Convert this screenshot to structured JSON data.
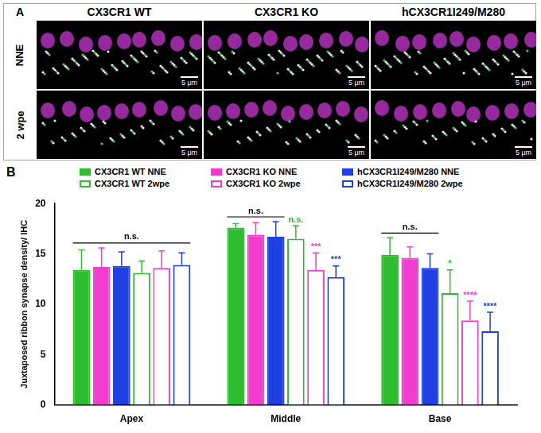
{
  "panel_a": {
    "letter": "A",
    "columns": [
      "CX3CR1 WT",
      "CX3CR1 KO",
      "hCX3CR1I249/M280"
    ],
    "rows": [
      "NNE",
      "2 wpe"
    ],
    "scale_bar": "5 μm"
  },
  "panel_b": {
    "letter": "B"
  },
  "chart_data": {
    "type": "bar",
    "categories": [
      "Apex",
      "Middle",
      "Base"
    ],
    "y_label": "Juxtaposed ribbon synapse density/ IHC",
    "ylim": [
      0,
      20
    ],
    "yticks": [
      0,
      5,
      10,
      15,
      20
    ],
    "grid": false,
    "legend": "top",
    "series": [
      {
        "name": "CX3CR1 WT NNE",
        "color": "#2ebd2e",
        "marker": "filled",
        "values": [
          13.4,
          17.6,
          14.9
        ],
        "errors": [
          2.0,
          0.4,
          1.7
        ]
      },
      {
        "name": "CX3CR1 KO NNE",
        "color": "#f23ccf",
        "marker": "filled",
        "values": [
          13.7,
          16.9,
          14.6
        ],
        "errors": [
          1.9,
          1.2,
          1.1
        ]
      },
      {
        "name": "hCX3CR1I249/M280 NNE",
        "color": "#1f3fe0",
        "marker": "filled",
        "values": [
          13.8,
          16.7,
          13.6
        ],
        "errors": [
          1.4,
          1.5,
          1.4
        ]
      },
      {
        "name": "CX3CR1 WT 2wpe",
        "color": "#2ebd2e",
        "marker": "open",
        "values": [
          13.1,
          16.5,
          11.1
        ],
        "errors": [
          1.2,
          1.3,
          2.3
        ]
      },
      {
        "name": "CX3CR1 KO 2wpe",
        "color": "#f23ccf",
        "marker": "open",
        "values": [
          13.6,
          13.4,
          8.4
        ],
        "errors": [
          1.7,
          1.7,
          1.9
        ]
      },
      {
        "name": "hCX3CR1I249/M280 2wpe",
        "color": "#1f3fe0",
        "marker": "open",
        "values": [
          13.9,
          12.7,
          7.3
        ],
        "errors": [
          1.2,
          1.1,
          1.9
        ]
      }
    ],
    "annotations": [
      {
        "text": "n.s.",
        "category": "Apex",
        "series": [
          "CX3CR1 WT NNE",
          "CX3CR1 KO NNE",
          "hCX3CR1I249/M280 NNE",
          "CX3CR1 WT 2wpe",
          "CX3CR1 KO 2wpe",
          "hCX3CR1I249/M280 2wpe"
        ]
      },
      {
        "text": "n.s.",
        "category": "Middle",
        "series": [
          "CX3CR1 WT NNE",
          "CX3CR1 KO NNE",
          "hCX3CR1I249/M280 NNE"
        ]
      },
      {
        "text": "n.s.",
        "category": "Middle",
        "series": [
          "CX3CR1 WT 2wpe"
        ]
      },
      {
        "text": "***",
        "category": "Middle",
        "series": [
          "CX3CR1 KO 2wpe"
        ]
      },
      {
        "text": "***",
        "category": "Middle",
        "series": [
          "hCX3CR1I249/M280 2wpe"
        ]
      },
      {
        "text": "n.s.",
        "category": "Base",
        "series": [
          "CX3CR1 WT NNE",
          "CX3CR1 KO NNE",
          "hCX3CR1I249/M280 NNE"
        ]
      },
      {
        "text": "*",
        "category": "Base",
        "series": [
          "CX3CR1 WT 2wpe"
        ]
      },
      {
        "text": "****",
        "category": "Base",
        "series": [
          "CX3CR1 KO 2wpe"
        ]
      },
      {
        "text": "****",
        "category": "Base",
        "series": [
          "hCX3CR1I249/M280 2wpe"
        ]
      }
    ]
  }
}
